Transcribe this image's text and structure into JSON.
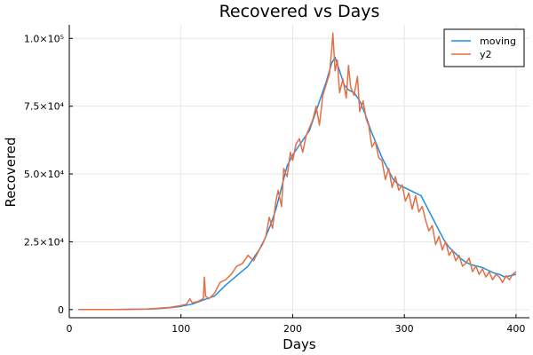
{
  "chart_data": {
    "type": "line",
    "title": "Recovered vs Days",
    "xlabel": "Days",
    "ylabel": "Recovered",
    "xlim": [
      0,
      412
    ],
    "ylim": [
      -3000,
      105000
    ],
    "xticks": [
      {
        "value": 0,
        "label": "0"
      },
      {
        "value": 100,
        "label": "100"
      },
      {
        "value": 200,
        "label": "200"
      },
      {
        "value": 300,
        "label": "300"
      },
      {
        "value": 400,
        "label": "400"
      }
    ],
    "yticks": [
      {
        "value": 0,
        "label": "0"
      },
      {
        "value": 25000,
        "label": "2.5×10⁴"
      },
      {
        "value": 50000,
        "label": "5.0×10⁴"
      },
      {
        "value": 75000,
        "label": "7.5×10⁴"
      },
      {
        "value": 100000,
        "label": "1.0×10⁵"
      }
    ],
    "grid": true,
    "legend_position": "top-right",
    "series": [
      {
        "name": "moving",
        "color": "#1f8ee0",
        "x": [
          8,
          40,
          70,
          80,
          90,
          100,
          110,
          120,
          130,
          140,
          150,
          160,
          170,
          175,
          180,
          185,
          190,
          195,
          200,
          205,
          210,
          215,
          220,
          225,
          230,
          235,
          238,
          242,
          246,
          250,
          255,
          260,
          265,
          270,
          275,
          280,
          285,
          290,
          295,
          300,
          305,
          310,
          315,
          320,
          325,
          330,
          335,
          340,
          345,
          350,
          355,
          360,
          365,
          370,
          375,
          380,
          385,
          390,
          395,
          400
        ],
        "y": [
          0,
          50,
          200,
          400,
          700,
          1200,
          2000,
          3500,
          5000,
          9000,
          12500,
          16000,
          22000,
          26000,
          31000,
          37000,
          45000,
          53000,
          57000,
          60000,
          63000,
          66000,
          72000,
          78000,
          84000,
          91000,
          93000,
          88000,
          83000,
          81000,
          80000,
          77000,
          72000,
          66000,
          61000,
          56000,
          52000,
          48000,
          46000,
          45000,
          44000,
          43000,
          42000,
          38000,
          34000,
          30000,
          26000,
          23000,
          21000,
          19000,
          17500,
          16500,
          16000,
          15500,
          14500,
          13500,
          13000,
          12000,
          12500,
          13000
        ]
      },
      {
        "name": "y2",
        "color": "#e26f46",
        "x": [
          8,
          40,
          70,
          80,
          90,
          100,
          105,
          108,
          110,
          115,
          120,
          121,
          122,
          125,
          130,
          135,
          140,
          145,
          150,
          155,
          160,
          165,
          170,
          173,
          176,
          179,
          182,
          185,
          187,
          190,
          192,
          195,
          198,
          200,
          203,
          206,
          209,
          212,
          215,
          218,
          221,
          224,
          227,
          230,
          233,
          235,
          236,
          238,
          240,
          242,
          245,
          248,
          250,
          252,
          255,
          258,
          260,
          263,
          266,
          268,
          271,
          274,
          277,
          280,
          283,
          286,
          289,
          292,
          295,
          298,
          301,
          304,
          307,
          310,
          313,
          316,
          319,
          322,
          325,
          328,
          331,
          334,
          337,
          340,
          343,
          346,
          349,
          352,
          355,
          358,
          361,
          364,
          367,
          370,
          373,
          376,
          379,
          382,
          385,
          388,
          391,
          394,
          397,
          400
        ],
        "y": [
          0,
          50,
          200,
          500,
          800,
          1500,
          2000,
          4000,
          2500,
          3000,
          4000,
          12000,
          5000,
          4000,
          6000,
          10000,
          11000,
          13000,
          16000,
          17000,
          20000,
          18000,
          22000,
          24000,
          27000,
          34000,
          30000,
          40000,
          44000,
          38000,
          52000,
          49000,
          58000,
          55000,
          61000,
          63000,
          58000,
          64000,
          67000,
          70000,
          75000,
          68000,
          79000,
          83000,
          87000,
          96000,
          102000,
          88000,
          92000,
          80000,
          85000,
          78000,
          90000,
          82000,
          79000,
          86000,
          73000,
          77000,
          70000,
          68000,
          60000,
          62000,
          56000,
          55000,
          48000,
          52000,
          45000,
          49000,
          44000,
          46000,
          40000,
          43000,
          37000,
          42000,
          36000,
          38000,
          33000,
          29000,
          31000,
          24000,
          27000,
          22000,
          25000,
          20000,
          22000,
          18000,
          20000,
          16000,
          17000,
          19000,
          14000,
          16000,
          13000,
          15000,
          12000,
          14000,
          11000,
          13000,
          12000,
          10000,
          12500,
          11000,
          13000,
          14000
        ]
      }
    ]
  }
}
